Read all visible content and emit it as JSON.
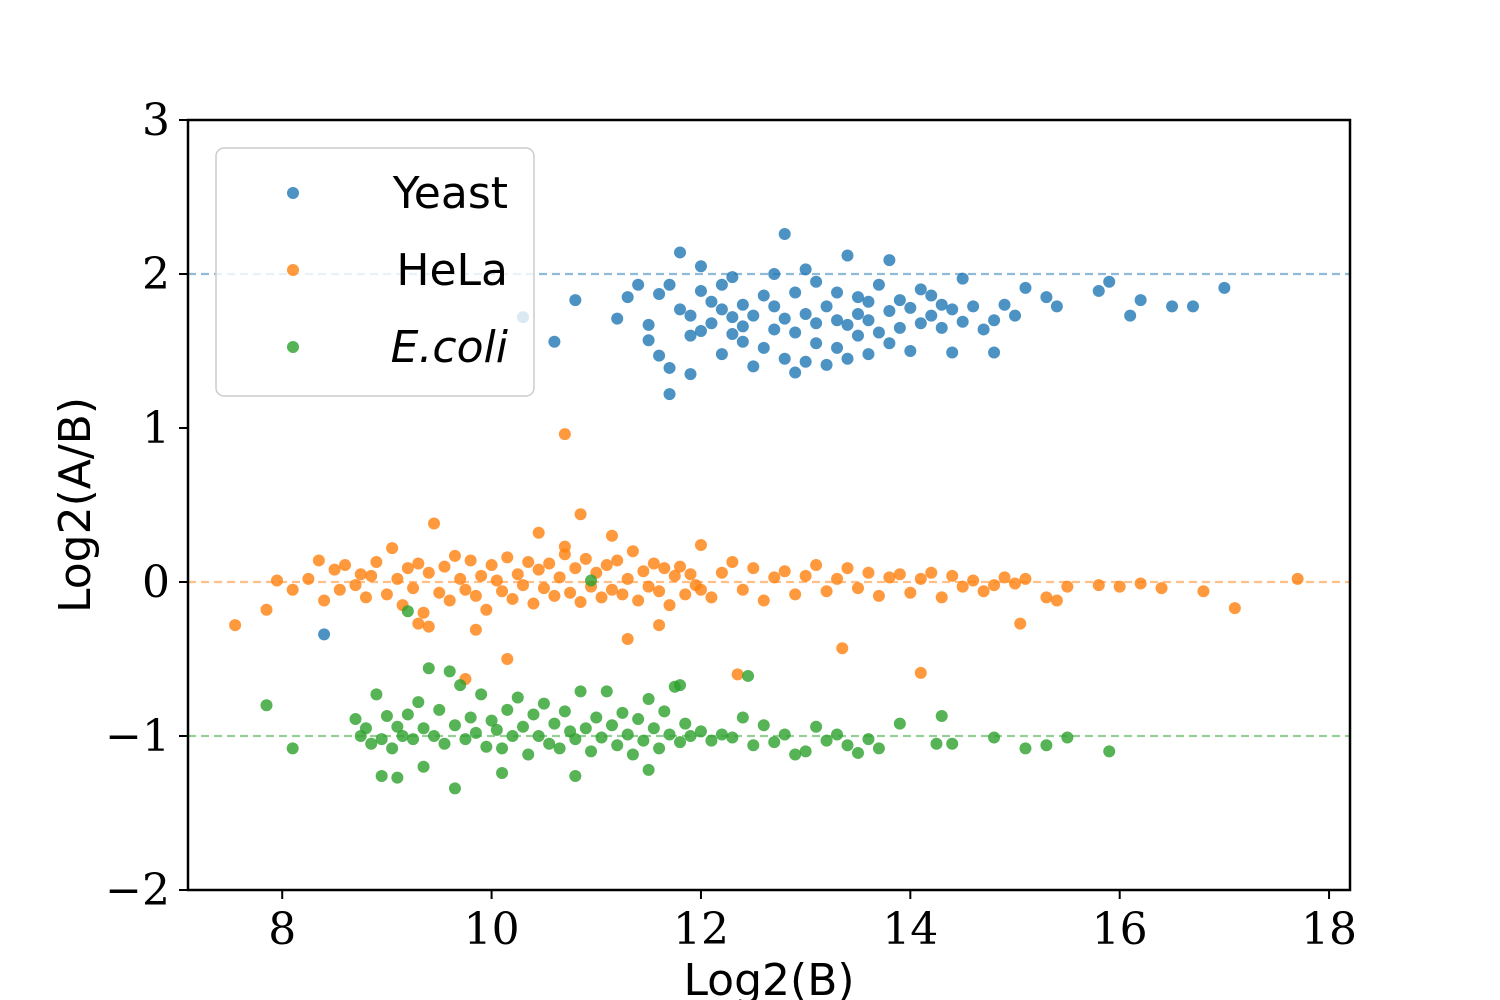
{
  "chart_data": {
    "type": "scatter",
    "xlabel": "Log2(B)",
    "ylabel": "Log2(A/B)",
    "xlim": [
      7.1,
      18.2
    ],
    "ylim": [
      -2,
      3
    ],
    "x_ticks": [
      8,
      10,
      12,
      14,
      16,
      18
    ],
    "y_ticks": [
      -2,
      -1,
      0,
      1,
      2,
      3
    ],
    "x_tick_labels": [
      "8",
      "10",
      "12",
      "14",
      "16",
      "18"
    ],
    "y_tick_labels": [
      "−2",
      "−1",
      "0",
      "1",
      "2",
      "3"
    ],
    "grid": false,
    "legend_position": "top-left",
    "reference_lines": [
      {
        "y": 2,
        "color": "#1f77b4"
      },
      {
        "y": 0,
        "color": "#ff7f0e"
      },
      {
        "y": -1,
        "color": "#2ca02c"
      }
    ],
    "series": [
      {
        "name": "Yeast",
        "italic": false,
        "color": "#1f77b4",
        "x": [
          8.4,
          10.3,
          10.6,
          10.8,
          11.2,
          11.3,
          11.4,
          11.5,
          11.5,
          11.6,
          11.6,
          11.7,
          11.7,
          11.7,
          11.8,
          11.8,
          11.9,
          11.9,
          11.9,
          12.0,
          12.0,
          12.0,
          12.1,
          12.1,
          12.2,
          12.2,
          12.2,
          12.3,
          12.3,
          12.3,
          12.4,
          12.4,
          12.4,
          12.5,
          12.5,
          12.6,
          12.6,
          12.7,
          12.7,
          12.7,
          12.8,
          12.8,
          12.8,
          12.9,
          12.9,
          12.9,
          13.0,
          13.0,
          13.0,
          13.1,
          13.1,
          13.1,
          13.2,
          13.2,
          13.3,
          13.3,
          13.3,
          13.4,
          13.4,
          13.4,
          13.5,
          13.5,
          13.5,
          13.6,
          13.6,
          13.6,
          13.7,
          13.7,
          13.8,
          13.8,
          13.8,
          13.9,
          13.9,
          14.0,
          14.0,
          14.1,
          14.1,
          14.2,
          14.2,
          14.3,
          14.3,
          14.4,
          14.4,
          14.5,
          14.5,
          14.6,
          14.7,
          14.8,
          14.8,
          14.9,
          15.0,
          15.1,
          15.3,
          15.4,
          15.8,
          15.9,
          16.1,
          16.2,
          16.5,
          16.7,
          17.0
        ],
        "y": [
          -0.34,
          1.72,
          1.56,
          1.83,
          1.71,
          1.85,
          1.93,
          1.57,
          1.67,
          1.47,
          1.87,
          1.22,
          1.39,
          1.93,
          1.77,
          2.14,
          1.6,
          1.35,
          1.73,
          2.05,
          1.63,
          1.89,
          1.68,
          1.82,
          1.48,
          1.77,
          1.93,
          1.61,
          1.72,
          1.98,
          1.56,
          1.66,
          1.8,
          1.4,
          1.73,
          1.52,
          1.86,
          1.64,
          1.79,
          2.0,
          1.45,
          1.71,
          2.26,
          1.36,
          1.62,
          1.88,
          1.43,
          1.74,
          2.03,
          1.55,
          1.68,
          1.95,
          1.41,
          1.79,
          1.52,
          1.7,
          1.88,
          1.45,
          1.67,
          2.12,
          1.6,
          1.74,
          1.85,
          1.48,
          1.7,
          1.82,
          1.62,
          1.93,
          1.55,
          1.76,
          2.09,
          1.65,
          1.83,
          1.5,
          1.78,
          1.68,
          1.9,
          1.73,
          1.86,
          1.65,
          1.8,
          1.49,
          1.77,
          1.69,
          1.97,
          1.79,
          1.64,
          1.49,
          1.7,
          1.8,
          1.73,
          1.91,
          1.85,
          1.79,
          1.89,
          1.95,
          1.73,
          1.83,
          1.79,
          1.79,
          1.91
        ]
      },
      {
        "name": "HeLa",
        "italic": false,
        "color": "#ff7f0e",
        "x": [
          7.55,
          7.85,
          7.95,
          8.1,
          8.25,
          8.35,
          8.4,
          8.5,
          8.55,
          8.6,
          8.7,
          8.75,
          8.8,
          8.85,
          8.9,
          9.0,
          9.05,
          9.1,
          9.15,
          9.2,
          9.25,
          9.3,
          9.35,
          9.4,
          9.45,
          9.5,
          9.55,
          9.6,
          9.65,
          9.7,
          9.75,
          9.8,
          9.85,
          9.9,
          9.95,
          10.0,
          10.05,
          10.1,
          10.15,
          10.2,
          10.25,
          10.3,
          10.35,
          10.4,
          10.45,
          10.5,
          10.55,
          10.6,
          10.65,
          10.7,
          10.75,
          10.8,
          10.85,
          10.9,
          10.95,
          11.0,
          11.05,
          11.1,
          11.15,
          11.2,
          11.25,
          11.3,
          11.35,
          11.4,
          11.45,
          11.5,
          11.55,
          11.6,
          11.65,
          11.7,
          11.75,
          11.8,
          11.85,
          11.9,
          11.95,
          12.0,
          12.1,
          12.2,
          12.3,
          12.4,
          12.5,
          12.6,
          12.7,
          12.8,
          12.9,
          13.0,
          13.1,
          13.2,
          13.3,
          13.4,
          13.5,
          13.6,
          13.7,
          13.8,
          13.9,
          14.0,
          14.1,
          14.2,
          14.3,
          14.4,
          14.5,
          14.6,
          14.7,
          14.8,
          14.9,
          15.0,
          15.1,
          15.3,
          15.4,
          15.5,
          15.8,
          16.0,
          16.2,
          16.4,
          16.8,
          17.1,
          17.7,
          10.7,
          10.85,
          9.4,
          9.75,
          11.3,
          11.6,
          10.15,
          9.85,
          12.35,
          13.35,
          14.1,
          15.05,
          10.45,
          11.15,
          12.0,
          9.3,
          10.7
        ],
        "y": [
          -0.28,
          -0.18,
          0.01,
          -0.05,
          0.02,
          0.14,
          -0.12,
          0.08,
          -0.05,
          0.11,
          -0.02,
          0.05,
          -0.1,
          0.04,
          0.13,
          -0.08,
          0.22,
          0.02,
          -0.15,
          0.09,
          -0.04,
          0.12,
          -0.2,
          0.06,
          0.38,
          -0.07,
          0.1,
          -0.12,
          0.17,
          0.02,
          -0.05,
          0.14,
          -0.09,
          0.04,
          -0.18,
          0.11,
          0.01,
          -0.06,
          0.16,
          -0.11,
          0.05,
          -0.02,
          0.13,
          -0.14,
          0.08,
          -0.04,
          0.12,
          -0.09,
          0.03,
          0.18,
          -0.07,
          0.09,
          -0.13,
          0.15,
          -0.03,
          0.06,
          -0.1,
          0.11,
          -0.05,
          0.14,
          -0.08,
          0.02,
          0.2,
          -0.12,
          0.07,
          -0.03,
          0.12,
          -0.06,
          0.09,
          -0.15,
          0.04,
          0.1,
          -0.08,
          0.05,
          -0.02,
          0.24,
          -0.1,
          0.06,
          0.13,
          -0.05,
          0.09,
          -0.12,
          0.03,
          0.07,
          -0.08,
          0.04,
          0.11,
          -0.06,
          0.02,
          0.09,
          -0.04,
          0.06,
          -0.09,
          0.03,
          0.05,
          -0.07,
          0.02,
          0.06,
          -0.1,
          0.04,
          -0.03,
          0.01,
          -0.06,
          -0.02,
          0.03,
          -0.01,
          0.02,
          -0.1,
          -0.12,
          -0.03,
          -0.02,
          -0.03,
          -0.01,
          -0.04,
          -0.06,
          -0.17,
          0.02,
          0.96,
          0.44,
          -0.29,
          -0.63,
          -0.37,
          -0.28,
          -0.5,
          -0.31,
          -0.6,
          -0.43,
          -0.59,
          -0.27,
          0.32,
          0.3,
          -0.05,
          -0.27,
          0.23
        ]
      },
      {
        "name": "E.coli",
        "italic": true,
        "color": "#2ca02c",
        "x": [
          7.85,
          8.1,
          8.7,
          8.75,
          8.8,
          8.85,
          8.9,
          8.95,
          9.0,
          9.05,
          9.1,
          9.15,
          9.2,
          9.25,
          9.3,
          9.35,
          9.4,
          9.45,
          9.5,
          9.55,
          9.6,
          9.65,
          9.7,
          9.75,
          9.8,
          9.85,
          9.9,
          9.95,
          10.0,
          10.05,
          10.1,
          10.15,
          10.2,
          10.25,
          10.3,
          10.35,
          10.4,
          10.45,
          10.5,
          10.55,
          10.6,
          10.65,
          10.7,
          10.75,
          10.8,
          10.85,
          10.9,
          10.95,
          11.0,
          11.05,
          11.1,
          11.15,
          11.2,
          11.25,
          11.3,
          11.35,
          11.4,
          11.45,
          11.5,
          11.55,
          11.6,
          11.65,
          11.7,
          11.75,
          11.8,
          11.85,
          11.9,
          12.0,
          12.1,
          12.2,
          12.3,
          12.4,
          12.5,
          12.6,
          12.7,
          12.8,
          12.9,
          13.0,
          13.1,
          13.2,
          13.3,
          13.4,
          13.5,
          13.6,
          13.7,
          13.9,
          14.25,
          14.3,
          14.4,
          14.8,
          15.1,
          15.3,
          15.5,
          15.9,
          8.95,
          9.1,
          9.35,
          9.65,
          10.1,
          10.8,
          11.5,
          9.2,
          10.95,
          12.45,
          11.8
        ],
        "y": [
          -0.8,
          -1.08,
          -0.89,
          -1.0,
          -0.95,
          -1.05,
          -0.73,
          -1.02,
          -0.87,
          -1.08,
          -0.94,
          -1.0,
          -0.86,
          -1.02,
          -0.78,
          -0.95,
          -0.56,
          -1.0,
          -0.83,
          -1.05,
          -0.58,
          -0.93,
          -0.67,
          -1.02,
          -0.88,
          -0.98,
          -0.73,
          -1.07,
          -0.9,
          -0.96,
          -1.08,
          -0.83,
          -1.0,
          -0.75,
          -0.94,
          -1.12,
          -0.86,
          -1.0,
          -0.79,
          -1.05,
          -0.92,
          -1.08,
          -0.84,
          -0.97,
          -1.02,
          -0.71,
          -0.95,
          -1.1,
          -0.88,
          -1.01,
          -0.71,
          -0.93,
          -1.06,
          -0.85,
          -0.99,
          -1.12,
          -0.89,
          -1.03,
          -0.76,
          -0.95,
          -1.08,
          -0.84,
          -0.99,
          -0.68,
          -1.04,
          -0.92,
          -1.0,
          -0.97,
          -1.03,
          -0.99,
          -1.01,
          -0.88,
          -1.06,
          -0.93,
          -1.04,
          -0.99,
          -1.12,
          -1.1,
          -0.94,
          -1.03,
          -0.99,
          -1.06,
          -1.11,
          -1.02,
          -1.08,
          -0.92,
          -1.05,
          -0.87,
          -1.05,
          -1.01,
          -1.08,
          -1.06,
          -1.01,
          -1.1,
          -1.26,
          -1.27,
          -1.2,
          -1.34,
          -1.24,
          -1.26,
          -1.22,
          -0.19,
          0.01,
          -0.61,
          -0.67
        ]
      }
    ]
  }
}
